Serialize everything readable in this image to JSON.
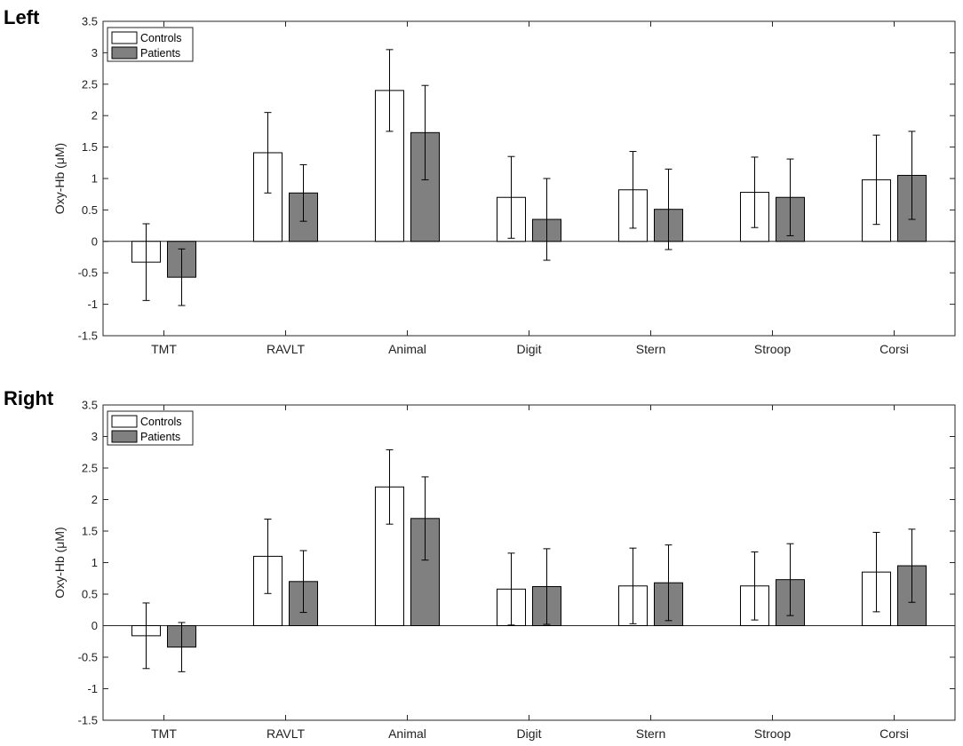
{
  "chart_data": [
    {
      "type": "bar",
      "title": "Left",
      "xlabel": "",
      "ylabel": "Oxy-Hb (μM)",
      "ylim": [
        -1.5,
        3.5
      ],
      "yticks": [
        -1.5,
        -1,
        -0.5,
        0,
        0.5,
        1,
        1.5,
        2,
        2.5,
        3,
        3.5
      ],
      "ytick_labels": [
        "-1.5",
        "-1",
        "-0.5",
        "0",
        "0.5",
        "1",
        "1.5",
        "2",
        "2.5",
        "3",
        "3.5"
      ],
      "categories": [
        "TMT",
        "RAVLT",
        "Animal",
        "Digit",
        "Stern",
        "Stroop",
        "Corsi"
      ],
      "legend_position": "top-left",
      "grid": false,
      "series": [
        {
          "name": "Controls",
          "color": "#ffffff",
          "values": [
            -0.33,
            1.41,
            2.4,
            0.7,
            0.82,
            0.78,
            0.98
          ],
          "error": [
            0.61,
            0.64,
            0.65,
            0.65,
            0.61,
            0.56,
            0.71
          ]
        },
        {
          "name": "Patients",
          "color": "#808080",
          "values": [
            -0.57,
            0.77,
            1.73,
            0.35,
            0.51,
            0.7,
            1.05
          ],
          "error": [
            0.45,
            0.45,
            0.75,
            0.65,
            0.64,
            0.61,
            0.7
          ]
        }
      ]
    },
    {
      "type": "bar",
      "title": "Right",
      "xlabel": "",
      "ylabel": "Oxy-Hb (μM)",
      "ylim": [
        -1.5,
        3.5
      ],
      "yticks": [
        -1.5,
        -1,
        -0.5,
        0,
        0.5,
        1,
        1.5,
        2,
        2.5,
        3,
        3.5
      ],
      "ytick_labels": [
        "-1.5",
        "-1",
        "-0.5",
        "0",
        "0.5",
        "1",
        "1.5",
        "2",
        "2.5",
        "3",
        "3.5"
      ],
      "categories": [
        "TMT",
        "RAVLT",
        "Animal",
        "Digit",
        "Stern",
        "Stroop",
        "Corsi"
      ],
      "legend_position": "top-left",
      "grid": false,
      "series": [
        {
          "name": "Controls",
          "color": "#ffffff",
          "values": [
            -0.16,
            1.1,
            2.2,
            0.58,
            0.63,
            0.63,
            0.85
          ],
          "error": [
            0.52,
            0.59,
            0.59,
            0.57,
            0.6,
            0.54,
            0.63
          ]
        },
        {
          "name": "Patients",
          "color": "#808080",
          "values": [
            -0.34,
            0.7,
            1.7,
            0.62,
            0.68,
            0.73,
            0.95
          ],
          "error": [
            0.39,
            0.49,
            0.66,
            0.6,
            0.6,
            0.57,
            0.58
          ]
        }
      ]
    }
  ]
}
